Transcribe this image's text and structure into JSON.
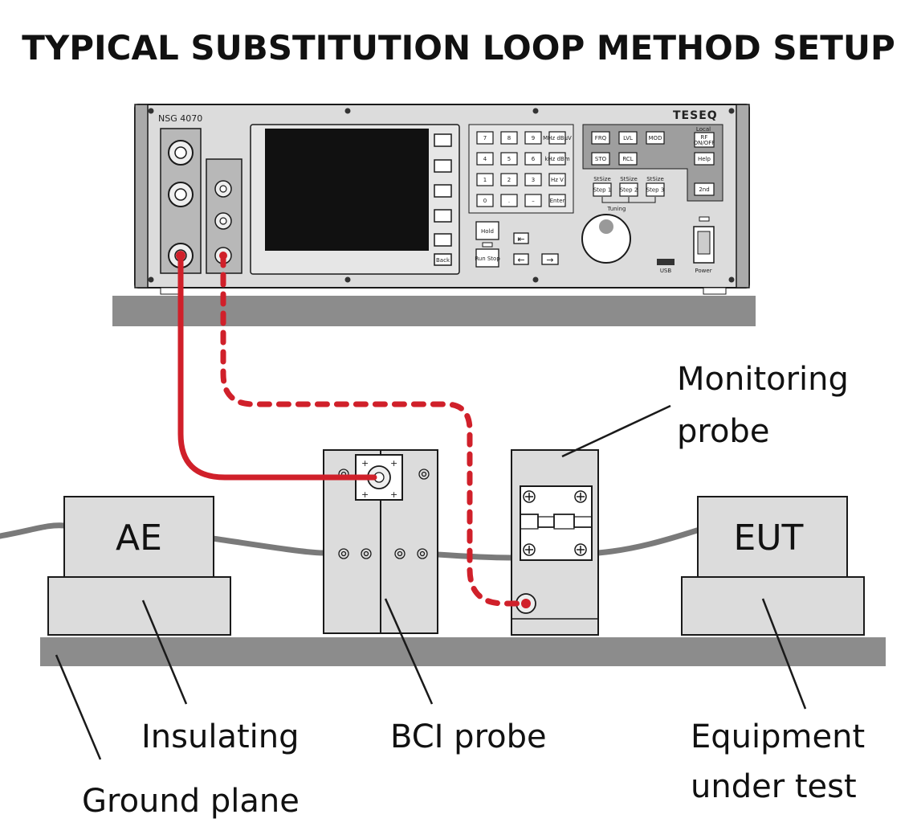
{
  "title": "TYPICAL SUBSTITUTION LOOP METHOD SETUP",
  "instrument": {
    "model": "NSG 4070",
    "brand": "TESEQ",
    "keypad": [
      [
        "7",
        "8",
        "9",
        "MHz dBµV"
      ],
      [
        "4",
        "5",
        "6",
        "kHz dBm"
      ],
      [
        "1",
        "2",
        "3",
        "Hz V"
      ],
      [
        "0",
        ".",
        "–",
        "Enter"
      ]
    ],
    "func_keys_row1": [
      "FRQ",
      "LVL",
      "MOD"
    ],
    "func_keys_row2": [
      "STO",
      "RCL"
    ],
    "local_label": "Local",
    "rf_label": "RF",
    "rf_sub": "ON/OFF",
    "help_label": "Help",
    "second_label": "2nd",
    "stsize_labels": [
      "StSize",
      "StSize",
      "StSize"
    ],
    "step_labels": [
      "Step 1",
      "Step 2",
      "Step 3"
    ],
    "tuning_label": "Tuning",
    "hold_label": "Hold",
    "runstop_label": "Run Stop",
    "back_label": "Back",
    "usb_label": "USB",
    "power_label": "Power"
  },
  "boxes": {
    "ae": "AE",
    "eut": "EUT"
  },
  "labels": {
    "monitoring_probe": [
      "Monitoring",
      "probe"
    ],
    "insulating": "Insulating",
    "bci_probe": "BCI probe",
    "equipment_under_test": [
      "Equipment",
      "under test"
    ],
    "ground_plane": "Ground plane"
  },
  "colors": {
    "cable_red": "#d0202a",
    "device_gray": "#d8d8d8",
    "plane_gray": "#8c8c8c",
    "outline": "#1a1a1a"
  }
}
